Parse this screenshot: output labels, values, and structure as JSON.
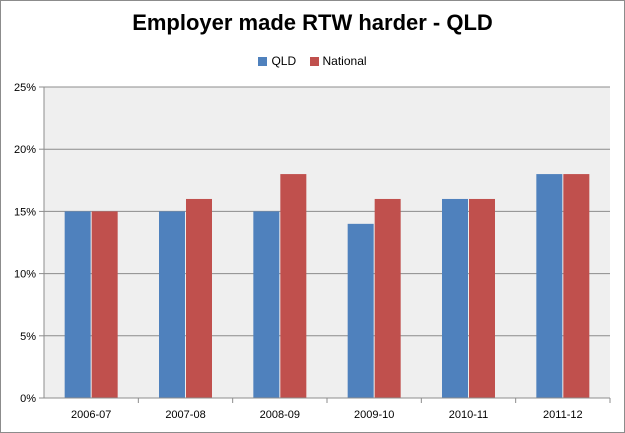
{
  "chart_data": {
    "type": "bar",
    "title": "Employer made RTW harder - QLD",
    "categories": [
      "2006-07",
      "2007-08",
      "2008-09",
      "2009-10",
      "2010-11",
      "2011-12"
    ],
    "series": [
      {
        "name": "QLD",
        "values": [
          15,
          15,
          15,
          14,
          16,
          18
        ],
        "color": "#4f81bd"
      },
      {
        "name": "National",
        "values": [
          15,
          16,
          18,
          16,
          16,
          18
        ],
        "color": "#c0504d"
      }
    ],
    "ylim": [
      0,
      25
    ],
    "yticks": [
      0,
      5,
      10,
      15,
      20,
      25
    ],
    "ytick_labels": [
      "0%",
      "5%",
      "10%",
      "15%",
      "20%",
      "25%"
    ],
    "grid": true,
    "legend_position": "top",
    "plot_background": "#efefef"
  }
}
